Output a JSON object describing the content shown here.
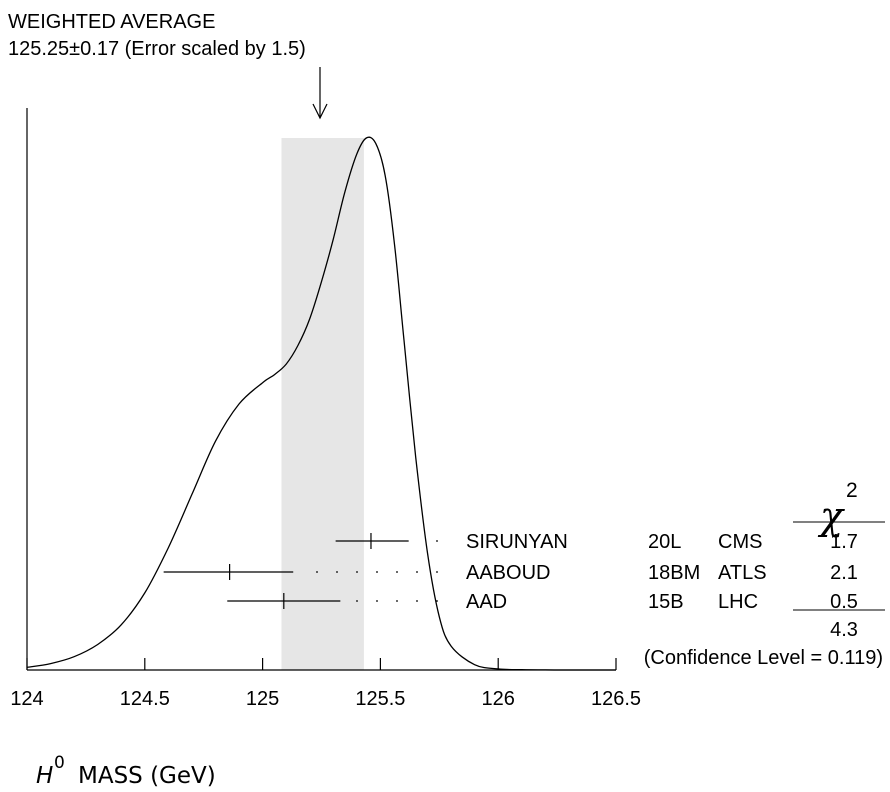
{
  "chart_data": {
    "type": "ideogram",
    "header": {
      "line1": "WEIGHTED AVERAGE",
      "line2": "125.25±0.17 (Error scaled by 1.5)"
    },
    "average": {
      "value": 125.25,
      "error": 0.17,
      "scale_factor": 1.5,
      "band": [
        125.08,
        125.43
      ]
    },
    "xlim": [
      124,
      126.5
    ],
    "ticks": [
      "124",
      "124.5",
      "125",
      "125.5",
      "126",
      "126.5"
    ],
    "tick_values": [
      124,
      124.5,
      125,
      125.5,
      126,
      126.5
    ],
    "xlabel": {
      "symbol": "H",
      "superscript": "0",
      "text": "MASS (GeV)"
    },
    "measurements": [
      {
        "value": 125.46,
        "low": 125.31,
        "high": 125.62,
        "author": "SIRUNYAN",
        "ref": "20L",
        "exp": "CMS",
        "chi2": "1.7"
      },
      {
        "value": 124.86,
        "low": 124.58,
        "high": 125.13,
        "author": "AABOUD",
        "ref": "18BM",
        "exp": "ATLS",
        "chi2": "2.1"
      },
      {
        "value": 125.09,
        "low": 124.85,
        "high": 125.33,
        "author": "AAD",
        "ref": "15B",
        "exp": "LHC",
        "chi2": "0.5"
      }
    ],
    "chi2_header": {
      "symbol": "χ",
      "superscript": "2"
    },
    "chi2_total": "4.3",
    "confidence": "(Confidence Level = 0.119)",
    "curve": {
      "x": [
        124.0,
        124.1,
        124.2,
        124.3,
        124.4,
        124.5,
        124.6,
        124.7,
        124.8,
        124.9,
        125.0,
        125.05,
        125.1,
        125.15,
        125.2,
        125.25,
        125.3,
        125.35,
        125.4,
        125.44,
        125.48,
        125.52,
        125.56,
        125.6,
        125.65,
        125.7,
        125.75,
        125.8,
        125.9,
        126.0,
        126.1,
        126.2,
        126.3
      ],
      "y": [
        0.005,
        0.012,
        0.025,
        0.048,
        0.085,
        0.145,
        0.23,
        0.33,
        0.43,
        0.5,
        0.54,
        0.555,
        0.575,
        0.61,
        0.66,
        0.73,
        0.81,
        0.9,
        0.97,
        1.0,
        0.99,
        0.93,
        0.8,
        0.62,
        0.4,
        0.22,
        0.1,
        0.045,
        0.01,
        0.002,
        0.0005,
        0.0001,
        0.0
      ]
    }
  }
}
